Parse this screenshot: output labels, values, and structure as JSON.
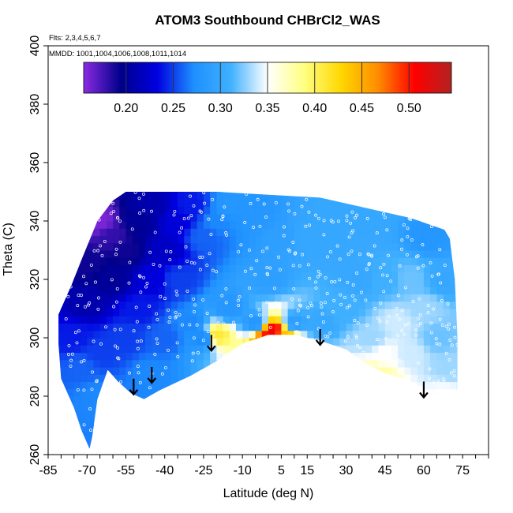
{
  "chart_data": {
    "type": "heatmap",
    "title": "ATOM3 Southbound CHBrCl2_WAS",
    "subtitle_flights": "Flts: 2,3,4,5,6,7",
    "subtitle_dates": "MMDD: 1001,1004,1006,1008,1011,1014",
    "xlabel": "Latitude (deg N)",
    "ylabel": "Theta (C)",
    "xlim": [
      -85,
      85
    ],
    "ylim": [
      260,
      400
    ],
    "x_ticks": [
      -85,
      -70,
      -55,
      -40,
      -25,
      -10,
      5,
      15,
      30,
      45,
      60,
      75
    ],
    "x_tick_labels": [
      "-85",
      "-70",
      "-55",
      "-40",
      "-25",
      "-10",
      "5",
      "15",
      "30",
      "45",
      "60",
      "75"
    ],
    "x_minor_step": 5,
    "y_ticks": [
      260,
      280,
      300,
      320,
      340,
      360,
      380,
      400
    ],
    "y_tick_labels": [
      "260",
      "280",
      "300",
      "320",
      "340",
      "360",
      "380",
      "400"
    ],
    "colorbar": {
      "min": 0.155,
      "max": 0.545,
      "ticks": [
        0.2,
        0.25,
        0.3,
        0.35,
        0.4,
        0.45,
        0.5
      ],
      "tick_labels": [
        "0.20",
        "0.25",
        "0.30",
        "0.35",
        "0.40",
        "0.45",
        "0.50"
      ],
      "divisions": [
        0.2,
        0.25,
        0.3,
        0.35,
        0.4,
        0.45,
        0.5
      ],
      "colors": [
        "#8b2be2",
        "#00008b",
        "#0000e0",
        "#1e90ff",
        "#40b0ff",
        "#ffffff",
        "#ffff80",
        "#ffd700",
        "#ff8c00",
        "#ff0000",
        "#b22222"
      ]
    },
    "domain_outline": [
      [
        -69,
        262
      ],
      [
        -72,
        268
      ],
      [
        -75,
        276
      ],
      [
        -80,
        286
      ],
      [
        -81,
        298
      ],
      [
        -81,
        308
      ],
      [
        -76,
        318
      ],
      [
        -72,
        327
      ],
      [
        -66,
        340
      ],
      [
        -60,
        347
      ],
      [
        -55,
        350
      ],
      [
        -45,
        350
      ],
      [
        -20,
        350
      ],
      [
        0,
        349
      ],
      [
        20,
        348
      ],
      [
        35,
        345
      ],
      [
        55,
        341
      ],
      [
        68,
        337
      ],
      [
        70,
        334
      ],
      [
        72,
        320
      ],
      [
        73,
        300
      ],
      [
        73,
        283
      ],
      [
        72,
        276
      ],
      [
        67,
        278
      ],
      [
        60,
        283
      ],
      [
        52,
        286
      ],
      [
        45,
        288
      ],
      [
        38,
        291
      ],
      [
        30,
        296
      ],
      [
        20,
        299
      ],
      [
        10,
        301
      ],
      [
        0,
        301
      ],
      [
        -10,
        298
      ],
      [
        -20,
        292
      ],
      [
        -30,
        287
      ],
      [
        -42,
        282
      ],
      [
        -48,
        279
      ],
      [
        -53,
        281
      ],
      [
        -58,
        285
      ],
      [
        -62,
        289
      ],
      [
        -66,
        279
      ],
      [
        -68,
        266
      ]
    ],
    "field_points": [
      [
        -75,
        300,
        0.24
      ],
      [
        -70,
        312,
        0.21
      ],
      [
        -70,
        325,
        0.19
      ],
      [
        -65,
        340,
        0.16
      ],
      [
        -60,
        335,
        0.18
      ],
      [
        -55,
        330,
        0.19
      ],
      [
        -50,
        340,
        0.2
      ],
      [
        -45,
        345,
        0.21
      ],
      [
        -40,
        330,
        0.22
      ],
      [
        -35,
        340,
        0.23
      ],
      [
        -30,
        345,
        0.24
      ],
      [
        -25,
        335,
        0.26
      ],
      [
        -20,
        340,
        0.27
      ],
      [
        -15,
        345,
        0.28
      ],
      [
        -5,
        342,
        0.28
      ],
      [
        5,
        335,
        0.29
      ],
      [
        15,
        335,
        0.3
      ],
      [
        25,
        330,
        0.3
      ],
      [
        35,
        320,
        0.3
      ],
      [
        45,
        320,
        0.31
      ],
      [
        55,
        320,
        0.32
      ],
      [
        62,
        335,
        0.28
      ],
      [
        68,
        320,
        0.3
      ],
      [
        -72,
        290,
        0.26
      ],
      [
        -66,
        280,
        0.27
      ],
      [
        -55,
        300,
        0.25
      ],
      [
        -50,
        310,
        0.24
      ],
      [
        -40,
        300,
        0.26
      ],
      [
        -30,
        305,
        0.27
      ],
      [
        -25,
        300,
        0.27
      ],
      [
        -15,
        310,
        0.28
      ],
      [
        -5,
        305,
        0.28
      ],
      [
        10,
        305,
        0.29
      ],
      [
        20,
        305,
        0.3
      ],
      [
        30,
        310,
        0.31
      ],
      [
        40,
        300,
        0.33
      ],
      [
        50,
        305,
        0.34
      ],
      [
        45,
        295,
        0.35
      ],
      [
        55,
        295,
        0.34
      ],
      [
        60,
        310,
        0.33
      ],
      [
        65,
        300,
        0.32
      ],
      [
        70,
        290,
        0.33
      ],
      [
        68,
        280,
        0.35
      ],
      [
        -20,
        301,
        0.41
      ],
      [
        0,
        301,
        0.5
      ],
      [
        2,
        302,
        0.52
      ],
      [
        6,
        301,
        0.44
      ],
      [
        42,
        287,
        0.38
      ],
      [
        -60,
        320,
        0.2
      ],
      [
        -45,
        320,
        0.23
      ],
      [
        -35,
        320,
        0.25
      ],
      [
        0,
        320,
        0.29
      ],
      [
        25,
        345,
        0.3
      ],
      [
        40,
        340,
        0.3
      ],
      [
        -65,
        295,
        0.25
      ],
      [
        -45,
        288,
        0.27
      ]
    ],
    "arrows": [
      {
        "lat": -52,
        "theta": 286
      },
      {
        "lat": -45,
        "theta": 290
      },
      {
        "lat": -22,
        "theta": 301
      },
      {
        "lat": 20,
        "theta": 303
      },
      {
        "lat": 60,
        "theta": 285
      }
    ]
  }
}
